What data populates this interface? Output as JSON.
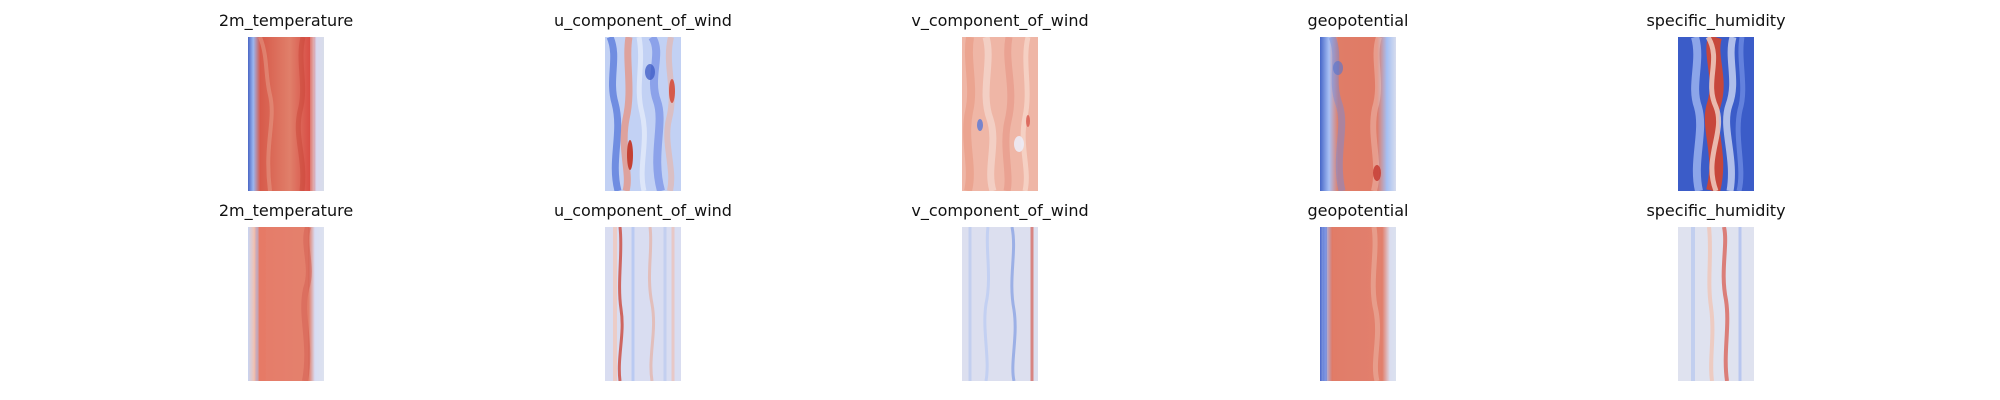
{
  "figure": {
    "rows": [
      {
        "panels": [
          {
            "title": "2m_temperature"
          },
          {
            "title": "u_component_of_wind"
          },
          {
            "title": "v_component_of_wind"
          },
          {
            "title": "geopotential"
          },
          {
            "title": "specific_humidity"
          }
        ]
      },
      {
        "panels": [
          {
            "title": "2m_temperature"
          },
          {
            "title": "u_component_of_wind"
          },
          {
            "title": "v_component_of_wind"
          },
          {
            "title": "geopotential"
          },
          {
            "title": "specific_humidity"
          }
        ]
      }
    ]
  }
}
